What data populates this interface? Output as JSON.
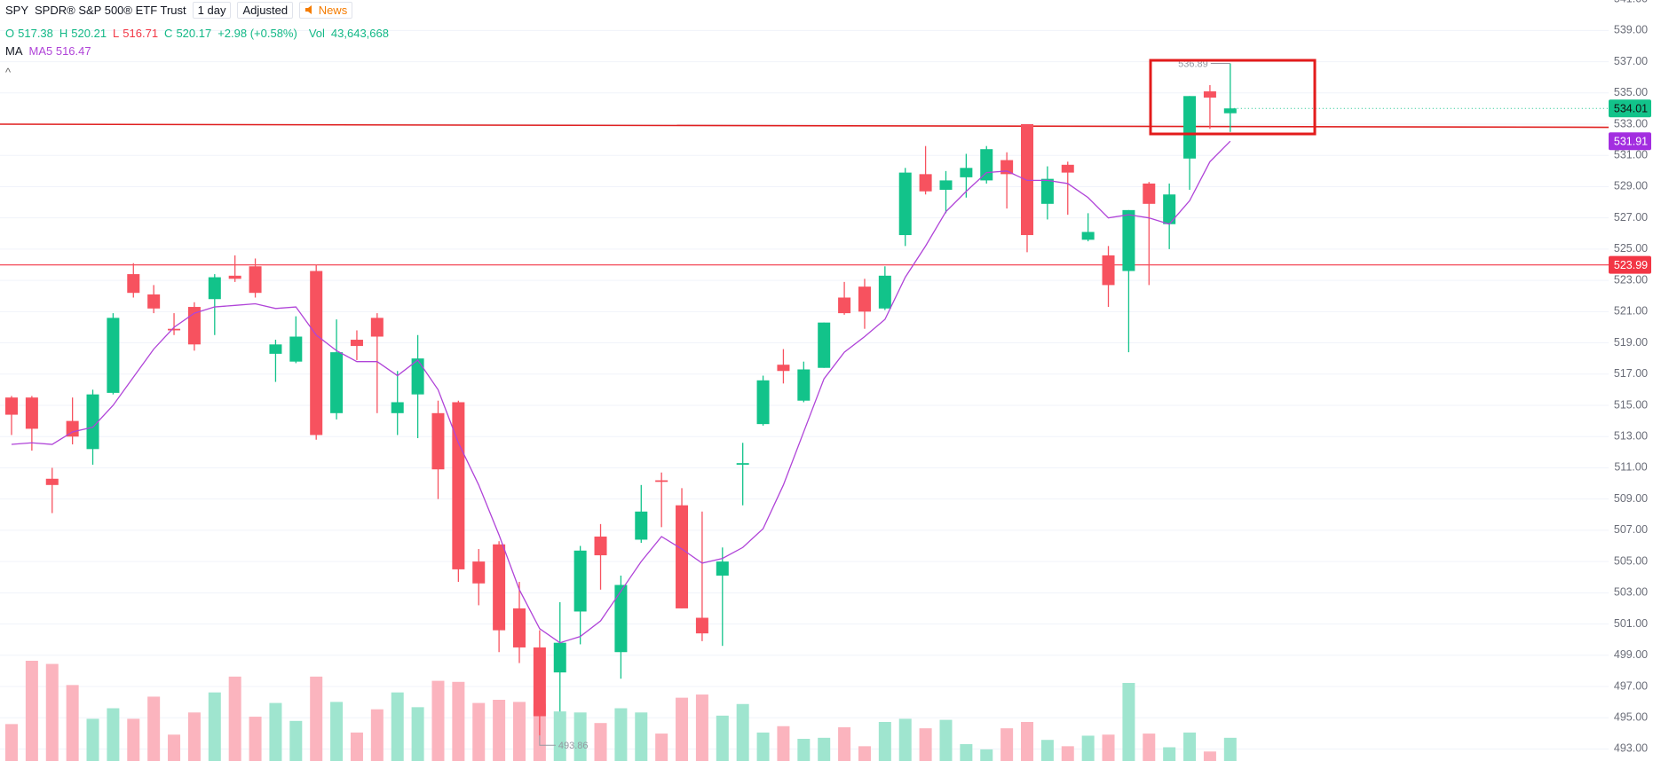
{
  "header": {
    "symbol": "SPY",
    "name": "SPDR® S&P 500® ETF Trust",
    "interval": "1 day",
    "adjust": "Adjusted",
    "news": "News",
    "o_label": "O",
    "o_value": "517.38",
    "h_label": "H",
    "h_value": "520.21",
    "l_label": "L",
    "l_value": "516.71",
    "c_label": "C",
    "c_value": "520.17",
    "change": "+2.98 (+0.58%)",
    "vol_label": "Vol",
    "vol_value": "43,643,668",
    "ma_label": "MA",
    "ma_value": "MA5 516.47",
    "collapse": "^"
  },
  "chart_data": {
    "type": "candlestick",
    "ylim": [
      492.23,
      540.95
    ],
    "yticks": [
      {
        "value": 493,
        "label": "493.00"
      },
      {
        "value": 495,
        "label": "495.00"
      },
      {
        "value": 497,
        "label": "497.00"
      },
      {
        "value": 499,
        "label": "499.00"
      },
      {
        "value": 501,
        "label": "501.00"
      },
      {
        "value": 503,
        "label": "503.00"
      },
      {
        "value": 505,
        "label": "505.00"
      },
      {
        "value": 507,
        "label": "507.00"
      },
      {
        "value": 509,
        "label": "509.00"
      },
      {
        "value": 511,
        "label": "511.00"
      },
      {
        "value": 513,
        "label": "513.00"
      },
      {
        "value": 515,
        "label": "515.00"
      },
      {
        "value": 517,
        "label": "517.00"
      },
      {
        "value": 519,
        "label": "519.00"
      },
      {
        "value": 521,
        "label": "521.00"
      },
      {
        "value": 523,
        "label": "523.00"
      },
      {
        "value": 525,
        "label": "525.00"
      },
      {
        "value": 527,
        "label": "527.00"
      },
      {
        "value": 529,
        "label": "529.00"
      },
      {
        "value": 531,
        "label": "531.00"
      },
      {
        "value": 533,
        "label": "533.00"
      },
      {
        "value": 535,
        "label": "535.00"
      },
      {
        "value": 537,
        "label": "537.00"
      },
      {
        "value": 539,
        "label": "539.00"
      },
      {
        "value": 541,
        "label": "541.00"
      }
    ],
    "grid": true,
    "up_color": "#12c38a",
    "down_color": "#f7525f",
    "up_volume_color": "#9fe5cf",
    "down_volume_color": "#fbb4be",
    "open": [
      515.5,
      515.5,
      510.3,
      514.0,
      512.2,
      515.8,
      523.4,
      522.1,
      519.9,
      521.3,
      521.8,
      523.3,
      523.9,
      518.3,
      517.8,
      523.6,
      514.5,
      519.2,
      520.6,
      514.5,
      515.7,
      514.5,
      515.2,
      505.0,
      506.1,
      502.0,
      499.5,
      497.9,
      501.8,
      506.6,
      499.2,
      506.4,
      510.2,
      508.6,
      501.4,
      504.1,
      511.2,
      513.8,
      517.6,
      515.3,
      517.4,
      521.9,
      522.6,
      521.2,
      525.9,
      529.8,
      528.8,
      529.6,
      529.4,
      530.7,
      533.0,
      527.9,
      530.4,
      525.6,
      524.6,
      523.6,
      529.2,
      526.6,
      530.8,
      535.1,
      533.7
    ],
    "high": [
      515.6,
      515.6,
      511.0,
      515.5,
      516.0,
      520.9,
      524.1,
      522.7,
      520.9,
      521.6,
      523.4,
      524.6,
      524.4,
      519.2,
      520.7,
      524.0,
      520.5,
      519.8,
      520.9,
      517.2,
      519.5,
      515.3,
      515.3,
      505.8,
      506.3,
      503.7,
      500.6,
      502.4,
      506.0,
      507.4,
      504.1,
      509.9,
      510.7,
      509.7,
      508.2,
      505.9,
      512.6,
      516.9,
      518.6,
      517.8,
      520.3,
      522.9,
      523.1,
      523.9,
      530.2,
      531.6,
      530.0,
      531.1,
      531.6,
      531.2,
      533.0,
      530.3,
      530.6,
      527.3,
      525.2,
      527.5,
      529.3,
      529.2,
      534.8,
      535.5,
      536.89
    ],
    "low": [
      513.1,
      512.1,
      508.1,
      512.5,
      511.2,
      515.7,
      521.9,
      520.9,
      519.5,
      518.5,
      519.5,
      522.9,
      521.9,
      516.5,
      517.7,
      512.8,
      514.1,
      517.9,
      514.5,
      513.1,
      512.9,
      509.0,
      503.7,
      502.2,
      499.2,
      498.5,
      493.86,
      495.4,
      499.7,
      503.2,
      497.5,
      506.2,
      507.2,
      502.0,
      499.9,
      499.6,
      508.6,
      513.7,
      516.4,
      515.2,
      517.4,
      520.8,
      519.9,
      521.1,
      525.2,
      528.5,
      527.3,
      528.3,
      529.2,
      527.6,
      524.8,
      526.9,
      527.2,
      525.5,
      521.3,
      518.4,
      522.7,
      525.0,
      528.8,
      532.7,
      532.5
    ],
    "close": [
      514.4,
      513.5,
      509.9,
      513.0,
      515.7,
      520.6,
      522.2,
      521.2,
      519.8,
      518.9,
      523.2,
      523.1,
      522.2,
      518.9,
      519.4,
      513.1,
      518.4,
      518.8,
      519.4,
      515.2,
      518.0,
      510.9,
      504.5,
      503.6,
      500.6,
      499.5,
      495.1,
      499.8,
      505.7,
      505.4,
      503.5,
      508.2,
      510.1,
      502.0,
      500.4,
      505.0,
      511.3,
      516.6,
      517.2,
      517.3,
      520.3,
      520.9,
      521.0,
      523.3,
      529.9,
      528.7,
      529.4,
      530.2,
      531.4,
      529.8,
      525.9,
      529.5,
      529.9,
      526.1,
      522.7,
      527.5,
      527.9,
      528.5,
      534.8,
      534.7,
      534.01
    ],
    "volume": [
      35,
      95,
      92,
      72,
      40,
      50,
      40,
      61,
      25,
      46,
      65,
      80,
      42,
      55,
      38,
      80,
      56,
      27,
      49,
      65,
      51,
      76,
      75,
      55,
      58,
      56,
      54,
      47,
      46,
      36,
      50,
      46,
      26,
      60,
      63,
      43,
      54,
      27,
      33,
      21,
      22,
      32,
      14,
      37,
      40,
      31,
      39,
      16,
      11,
      31,
      37,
      20,
      14,
      24,
      25,
      74,
      26,
      13,
      27,
      9,
      22
    ],
    "ma": {
      "color": "#b044d8",
      "values": [
        512.5,
        512.6,
        512.5,
        513.3,
        513.6,
        515.0,
        516.8,
        518.6,
        520.0,
        520.9,
        521.3,
        521.4,
        521.5,
        521.2,
        521.3,
        519.5,
        518.5,
        517.8,
        517.8,
        516.9,
        517.9,
        516.0,
        512.6,
        509.9,
        506.7,
        503.2,
        500.7,
        499.8,
        500.2,
        501.2,
        503.1,
        505.0,
        506.6,
        505.8,
        504.9,
        505.2,
        505.9,
        507.1,
        509.9,
        513.3,
        516.7,
        518.4,
        519.4,
        520.5,
        523.2,
        525.2,
        527.4,
        528.7,
        529.9,
        530.0,
        529.4,
        529.4,
        529.2,
        528.3,
        527.0,
        527.2,
        527.0,
        526.6,
        528.1,
        530.6,
        531.91
      ]
    },
    "hlines": [
      {
        "value": 523.99,
        "color": "#f23645"
      }
    ],
    "trend_line": {
      "values": [
        533.0,
        532.8
      ],
      "color": "#e02020"
    }
  }
}
